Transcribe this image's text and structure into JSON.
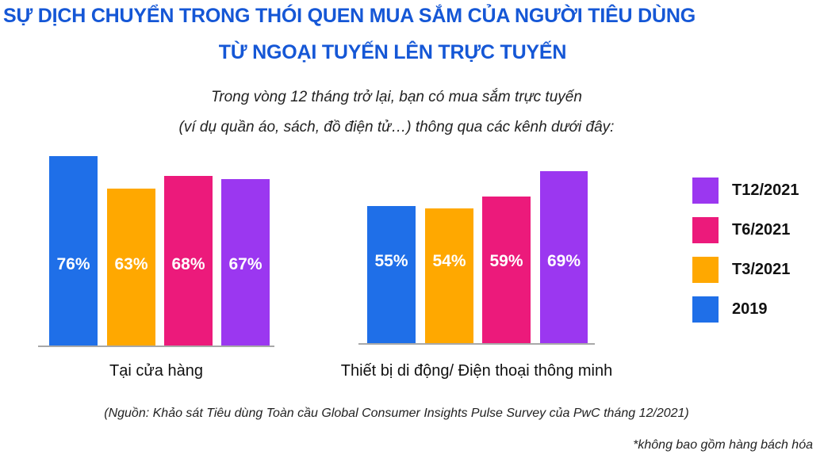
{
  "title": {
    "line1": "SỰ DỊCH CHUYỂN TRONG THÓI QUEN MUA SẮM CỦA NGƯỜI TIÊU DÙNG",
    "line2": "TỪ NGOẠI TUYẾN LÊN TRỰC TUYẾN",
    "color": "#1557d6"
  },
  "subtitle": {
    "line1": "Trong vòng 12 tháng trở lại, bạn có mua sắm trực tuyến",
    "line2": "(ví dụ quần áo, sách, đồ điện tử…) thông qua các kênh dưới đây:"
  },
  "groups": [
    {
      "label": "Tại cửa hàng",
      "bars": [
        {
          "series": "2019",
          "value": 76,
          "label": "76%",
          "color": "#1f6fe8"
        },
        {
          "series": "T3/2021",
          "value": 63,
          "label": "63%",
          "color": "#ffa800"
        },
        {
          "series": "T6/2021",
          "value": 68,
          "label": "68%",
          "color": "#ec1a7b"
        },
        {
          "series": "T12/2021",
          "value": 67,
          "label": "67%",
          "color": "#9b37f0"
        }
      ]
    },
    {
      "label": "Thiết bị di động/ Điện thoại thông minh",
      "bars": [
        {
          "series": "2019",
          "value": 55,
          "label": "55%",
          "color": "#1f6fe8"
        },
        {
          "series": "T3/2021",
          "value": 54,
          "label": "54%",
          "color": "#ffa800"
        },
        {
          "series": "T6/2021",
          "value": 59,
          "label": "59%",
          "color": "#ec1a7b"
        },
        {
          "series": "T12/2021",
          "value": 69,
          "label": "69%",
          "color": "#9b37f0"
        }
      ]
    }
  ],
  "legend": [
    {
      "label": "T12/2021",
      "color": "#9b37f0"
    },
    {
      "label": "T6/2021",
      "color": "#ec1a7b"
    },
    {
      "label": "T3/2021",
      "color": "#ffa800"
    },
    {
      "label": "2019",
      "color": "#1f6fe8"
    }
  ],
  "source": "(Nguồn: Khảo sát Tiêu dùng Toàn cầu Global Consumer Insights Pulse Survey của PwC tháng 12/2021)",
  "footnote": "*không bao gồm hàng bách hóa",
  "chart_data": {
    "type": "bar",
    "title": "SỰ DỊCH CHUYỂN TRONG THÓI QUEN MUA SẮM CỦA NGƯỜI TIÊU DÙNG TỪ NGOẠI TUYẾN LÊN TRỰC TUYẾN",
    "subtitle": "Trong vòng 12 tháng trở lại, bạn có mua sắm trực tuyến (ví dụ quần áo, sách, đồ điện tử…) thông qua các kênh dưới đây:",
    "categories": [
      "Tại cửa hàng",
      "Thiết bị di động/ Điện thoại thông minh"
    ],
    "series": [
      {
        "name": "2019",
        "values": [
          76,
          55
        ],
        "color": "#1f6fe8"
      },
      {
        "name": "T3/2021",
        "values": [
          63,
          54
        ],
        "color": "#ffa800"
      },
      {
        "name": "T6/2021",
        "values": [
          68,
          59
        ],
        "color": "#ec1a7b"
      },
      {
        "name": "T12/2021",
        "values": [
          67,
          69
        ],
        "color": "#9b37f0"
      }
    ],
    "value_format": "percent",
    "xlabel": "",
    "ylabel": "",
    "grid": false,
    "legend_position": "right",
    "data_labels": "inside-bar-middle",
    "notes": [
      "(Nguồn: Khảo sát Tiêu dùng Toàn cầu Global Consumer Insights Pulse Survey của PwC tháng 12/2021)",
      "*không bao gồm hàng bách hóa"
    ]
  }
}
